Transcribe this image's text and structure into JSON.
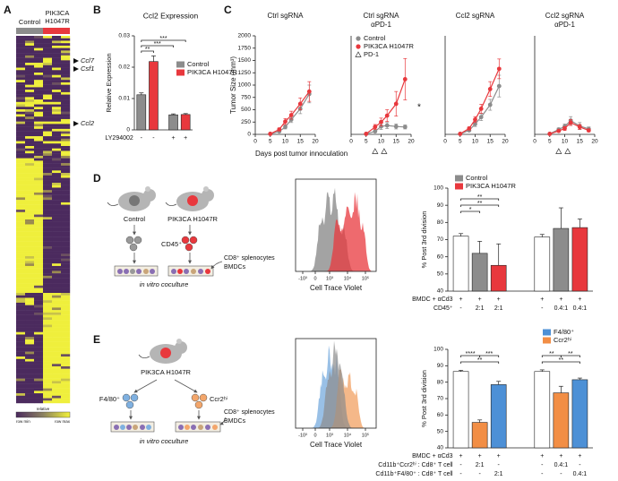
{
  "figure": {
    "A": {
      "label": "A",
      "columns": [
        "Control",
        [
          "PIK3CA",
          "H1047R"
        ]
      ],
      "genes": [
        "Ccl7",
        "Csf1",
        "Ccl2"
      ],
      "scale": {
        "title": "relative",
        "min": "row min",
        "max": "row max"
      }
    },
    "B": {
      "label": "B"
    },
    "C": {
      "label": "C"
    },
    "D": {
      "label": "D",
      "diagram": {
        "groups": [
          "Control",
          "PIK3CA H1047R"
        ],
        "cells": "CD45⁺",
        "effectors": [
          "CD8⁺ splenocytes",
          "BMDCs"
        ],
        "assay": "in vitro coculture"
      },
      "histogram": {
        "xlabel": "Cell Trace Violet",
        "ticks": [
          "-10³",
          "0",
          "10³",
          "10⁴",
          "10⁵"
        ]
      }
    },
    "E": {
      "label": "E",
      "diagram": {
        "group": "PIK3CA H1047R",
        "cells": [
          "F4/80⁺",
          "Ccr2ʰⁱ"
        ],
        "effectors": [
          "CD8⁺ splenocytes",
          "BMDCs"
        ],
        "assay": "in vitro coculture"
      },
      "histogram": {
        "xlabel": "Cell Trace Violet",
        "ticks": [
          "-10³",
          "0",
          "10³",
          "10⁴",
          "10⁵"
        ]
      }
    }
  },
  "chart_data": [
    {
      "type": "bar",
      "title": "Ccl2 Expression",
      "ylabel": "Relative Expression",
      "ylim": [
        0,
        0.03
      ],
      "yticks": [
        0,
        0.01,
        0.02,
        0.03
      ],
      "values": [
        0.0112,
        0.0218,
        0.0048,
        0.0049
      ],
      "errors": [
        0.0006,
        0.0018,
        0.0003,
        0.0003
      ],
      "colors": [
        "#8c8c8c",
        "#e8383d",
        "#8c8c8c",
        "#e8383d"
      ],
      "legend": [
        {
          "name": "Control",
          "color": "#8c8c8c"
        },
        {
          "name": "PIK3CA H1047R",
          "color": "#e8383d"
        }
      ],
      "rows": [
        {
          "label": "LY294002",
          "values": [
            "-",
            "-",
            "+",
            "+"
          ]
        }
      ],
      "annotations": [
        "***",
        "***",
        "**"
      ]
    },
    {
      "type": "line",
      "title": [
        "Ctrl sgRNA"
      ],
      "ylabel": "Tumor Size (mm³)",
      "xlabel": "Days post tumor innoculation",
      "x": [
        5,
        8,
        10,
        12,
        15,
        18
      ],
      "xlim": [
        0,
        20
      ],
      "xticks": [
        0,
        5,
        10,
        15,
        20
      ],
      "ylim": [
        0,
        2000
      ],
      "yticks": [
        0,
        250,
        500,
        750,
        1000,
        1250,
        1500,
        1750,
        2000
      ],
      "series": [
        {
          "color": "#8c8c8c",
          "values": [
            10,
            60,
            150,
            300,
            520,
            820
          ],
          "errors": [
            0,
            20,
            40,
            60,
            100,
            180
          ]
        },
        {
          "color": "#e8383d",
          "values": [
            10,
            100,
            260,
            390,
            620,
            870
          ],
          "errors": [
            0,
            30,
            60,
            80,
            120,
            200
          ]
        }
      ]
    },
    {
      "type": "line",
      "title": [
        "Ctrl sgRNA",
        "αPD-1"
      ],
      "x": [
        5,
        8,
        10,
        12,
        15,
        18
      ],
      "xlim": [
        0,
        20
      ],
      "xticks": [
        0,
        5,
        10,
        15,
        20
      ],
      "ylim": [
        0,
        2000
      ],
      "series": [
        {
          "name": "Control",
          "color": "#8c8c8c",
          "values": [
            10,
            60,
            160,
            180,
            160,
            150
          ],
          "errors": [
            0,
            20,
            60,
            60,
            50,
            40
          ]
        },
        {
          "name": "PIK3CA H1047R",
          "color": "#e8383d",
          "values": [
            10,
            150,
            250,
            380,
            620,
            1120
          ],
          "errors": [
            0,
            50,
            80,
            120,
            250,
            420
          ]
        }
      ],
      "treatment_name": "PD-1",
      "treatment_days": [
        8,
        11
      ],
      "annotations": [
        "*"
      ]
    },
    {
      "type": "line",
      "title": [
        "Ccl2 sgRNA"
      ],
      "x": [
        5,
        8,
        10,
        12,
        15,
        18
      ],
      "xlim": [
        0,
        20
      ],
      "xticks": [
        0,
        5,
        10,
        15,
        20
      ],
      "ylim": [
        0,
        2000
      ],
      "series": [
        {
          "color": "#8c8c8c",
          "values": [
            10,
            80,
            210,
            350,
            600,
            980
          ],
          "errors": [
            0,
            20,
            50,
            70,
            110,
            220
          ]
        },
        {
          "color": "#e8383d",
          "values": [
            10,
            120,
            300,
            520,
            920,
            1330
          ],
          "errors": [
            0,
            30,
            60,
            90,
            150,
            200
          ]
        }
      ]
    },
    {
      "type": "line",
      "title": [
        "Ccl2 sgRNA",
        "αPD-1"
      ],
      "x": [
        5,
        8,
        10,
        12,
        15,
        18
      ],
      "xlim": [
        0,
        20
      ],
      "xticks": [
        0,
        5,
        10,
        15,
        20
      ],
      "ylim": [
        0,
        2000
      ],
      "series": [
        {
          "color": "#8c8c8c",
          "values": [
            10,
            100,
            160,
            280,
            170,
            110
          ],
          "errors": [
            0,
            30,
            50,
            80,
            70,
            40
          ]
        },
        {
          "color": "#e8383d",
          "values": [
            10,
            70,
            120,
            240,
            150,
            80
          ],
          "errors": [
            0,
            20,
            40,
            60,
            50,
            30
          ]
        }
      ],
      "treatment_days": [
        8,
        11
      ]
    },
    {
      "type": "bar",
      "ylabel": "% Post 3rd division",
      "ylim": [
        40,
        100
      ],
      "yticks": [
        40,
        50,
        60,
        70,
        80,
        90,
        100
      ],
      "values": [
        72,
        62,
        55,
        71.5,
        76.5,
        77
      ],
      "errors": [
        1.5,
        7,
        12.5,
        1.5,
        12,
        5
      ],
      "colors": [
        "#ffffff",
        "#8c8c8c",
        "#e8383d",
        "#ffffff",
        "#8c8c8c",
        "#e8383d"
      ],
      "legend": [
        {
          "name": "Control",
          "color": "#8c8c8c"
        },
        {
          "name": "PIK3CA H1047R",
          "color": "#e8383d"
        }
      ],
      "rows": [
        {
          "label": "BMDC + αCd3",
          "values": [
            "+",
            "+",
            "+",
            "+",
            "+",
            "+"
          ]
        },
        {
          "label": "CD45⁺",
          "values": [
            "-",
            "2:1",
            "2:1",
            "-",
            "0.4:1",
            "0.4:1"
          ]
        }
      ],
      "annotations": [
        "**",
        "**",
        "*"
      ]
    },
    {
      "type": "bar",
      "ylabel": "% Post 3rd division",
      "ylim": [
        40,
        100
      ],
      "yticks": [
        40,
        50,
        60,
        70,
        80,
        90,
        100
      ],
      "values": [
        86.5,
        55.5,
        78.5,
        86.5,
        73.5,
        81.5
      ],
      "errors": [
        0.7,
        1.5,
        2,
        1,
        4,
        1
      ],
      "colors": [
        "#ffffff",
        "#f28e45",
        "#4d90d6",
        "#ffffff",
        "#f28e45",
        "#4d90d6"
      ],
      "legend": [
        {
          "name": "F4/80⁺",
          "color": "#4d90d6"
        },
        {
          "name": "Ccr2ʰⁱ",
          "color": "#f28e45"
        }
      ],
      "rows": [
        {
          "label": "BMDC + αCd3",
          "values": [
            "+",
            "+",
            "+",
            "+",
            "+",
            "+"
          ]
        },
        {
          "label": "Cd11b⁺Ccr2ʰⁱ : Cd8⁺ T cell",
          "values": [
            "-",
            "2:1",
            "-",
            "-",
            "0.4:1",
            "-"
          ]
        },
        {
          "label": "Cd11b⁺F4/80⁺ : Cd8⁺ T cell",
          "values": [
            "-",
            "-",
            "2:1",
            "-",
            "-",
            "0.4:1"
          ]
        }
      ],
      "annotations": [
        "****",
        "***",
        "**",
        "**",
        "**",
        "**"
      ]
    }
  ]
}
